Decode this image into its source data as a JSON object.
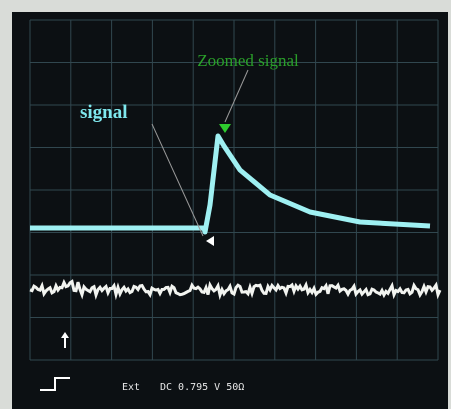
{
  "annotations": {
    "zoomed": "Zoomed signal",
    "signal": "signal"
  },
  "status": {
    "trigger": "Ext",
    "coupling": "DC 0.795 V 50Ω"
  }
}
